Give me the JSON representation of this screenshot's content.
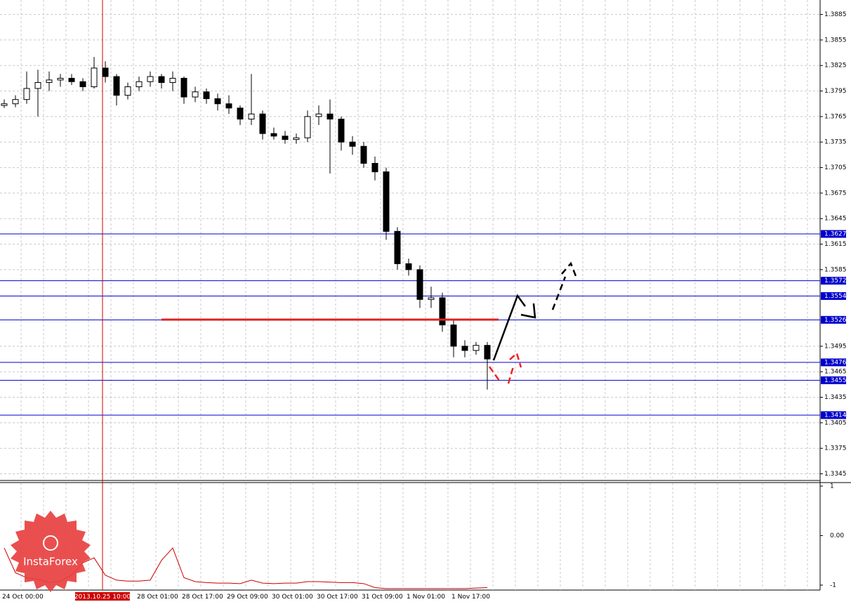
{
  "chart_data": [
    {
      "type": "candlestick",
      "categories": [
        "24 Oct 00:00",
        null,
        null,
        null,
        null,
        null,
        null,
        null,
        "2013.10.25 10:00",
        null,
        null,
        null,
        "28 Oct 01:00",
        null,
        null,
        null,
        "28 Oct 17:00",
        null,
        null,
        null,
        "29 Oct 09:00",
        null,
        null,
        null,
        "30 Oct 01:00",
        null,
        null,
        null,
        "30 Oct 17:00",
        null,
        null,
        null,
        "31 Oct 09:00",
        null,
        null,
        null,
        "1 Nov 01:00",
        null,
        null,
        null,
        "1 Nov 17:00",
        null,
        null,
        null
      ],
      "open": [
        1.3778,
        1.378,
        1.3785,
        1.3798,
        1.3805,
        1.3808,
        1.381,
        1.3806,
        1.38,
        1.3822,
        1.3812,
        1.379,
        1.38,
        1.3806,
        1.3812,
        1.3805,
        1.381,
        1.3788,
        1.3794,
        1.3786,
        1.378,
        1.3775,
        1.3762,
        1.3768,
        1.3745,
        1.3742,
        1.3738,
        1.374,
        1.3765,
        1.3768,
        1.3762,
        1.3735,
        1.373,
        1.371,
        1.37,
        1.363,
        1.3592,
        1.3585,
        1.355,
        1.3552,
        1.352,
        1.3495,
        1.349,
        1.3496
      ],
      "high": [
        1.3785,
        1.379,
        1.3818,
        1.382,
        1.3818,
        1.3815,
        1.3815,
        1.381,
        1.3835,
        1.383,
        1.3815,
        1.3805,
        1.3812,
        1.3818,
        1.3815,
        1.3818,
        1.3812,
        1.38,
        1.3798,
        1.3792,
        1.379,
        1.3778,
        1.3815,
        1.3772,
        1.3752,
        1.3748,
        1.3745,
        1.3772,
        1.3778,
        1.3785,
        1.3765,
        1.3742,
        1.3735,
        1.3718,
        1.3705,
        1.3635,
        1.3598,
        1.359,
        1.3565,
        1.3558,
        1.3525,
        1.3502,
        1.35,
        1.35
      ],
      "low": [
        1.3775,
        1.3776,
        1.378,
        1.3765,
        1.3795,
        1.38,
        1.3802,
        1.3795,
        1.3798,
        1.3805,
        1.3778,
        1.3785,
        1.3795,
        1.38,
        1.3798,
        1.3795,
        1.378,
        1.3782,
        1.378,
        1.3772,
        1.3768,
        1.3755,
        1.3755,
        1.3738,
        1.3738,
        1.3733,
        1.3733,
        1.3735,
        1.3755,
        1.3698,
        1.3725,
        1.372,
        1.3705,
        1.369,
        1.362,
        1.3585,
        1.3578,
        1.354,
        1.354,
        1.3512,
        1.3482,
        1.3482,
        1.3485,
        1.3444
      ],
      "close": [
        1.378,
        1.3785,
        1.3798,
        1.3805,
        1.3808,
        1.381,
        1.3806,
        1.38,
        1.3822,
        1.3812,
        1.379,
        1.38,
        1.3806,
        1.3812,
        1.3805,
        1.381,
        1.3788,
        1.3794,
        1.3786,
        1.378,
        1.3775,
        1.3762,
        1.3768,
        1.3745,
        1.3742,
        1.3738,
        1.374,
        1.3765,
        1.3768,
        1.3762,
        1.3735,
        1.373,
        1.371,
        1.37,
        1.363,
        1.3592,
        1.3585,
        1.355,
        1.3552,
        1.352,
        1.3495,
        1.349,
        1.3496,
        1.348
      ],
      "ylim": [
        1.3338,
        1.3902
      ],
      "yticks": [
        1.3885,
        1.3855,
        1.3825,
        1.3795,
        1.3765,
        1.3735,
        1.3705,
        1.3675,
        1.3645,
        1.3615,
        1.3585,
        1.3495,
        1.3465,
        1.3435,
        1.3405,
        1.3375,
        1.3345
      ],
      "levels": [
        1.3627,
        1.3572,
        1.3554,
        1.3526,
        1.3476,
        1.3455,
        1.3414
      ],
      "level_color": "#0000cc",
      "highlight": "2013.10.25 10:00",
      "highlight_color": "#cc0000",
      "grid": true,
      "watermark": "InstaForex"
    },
    {
      "type": "line",
      "color": "#cc0000",
      "values": [
        -0.25,
        -0.75,
        -0.85,
        -0.88,
        -0.95,
        -0.92,
        -0.8,
        -0.55,
        -0.45,
        -0.8,
        -0.9,
        -0.92,
        -0.92,
        -0.9,
        -0.5,
        -0.25,
        -0.85,
        -0.93,
        -0.95,
        -0.96,
        -0.96,
        -0.97,
        -0.9,
        -0.96,
        -0.97,
        -0.96,
        -0.96,
        -0.93,
        -0.93,
        -0.94,
        -0.95,
        -0.95,
        -0.97,
        -1.05,
        -1.07,
        -1.07,
        -1.07,
        -1.07,
        -1.07,
        -1.07,
        -1.07,
        -1.07,
        -1.06,
        -1.05
      ],
      "ylim": [
        -1.1,
        1.07
      ],
      "yticks": [
        1,
        {
          "value": 0,
          "label": "0.00"
        },
        -1
      ]
    }
  ]
}
